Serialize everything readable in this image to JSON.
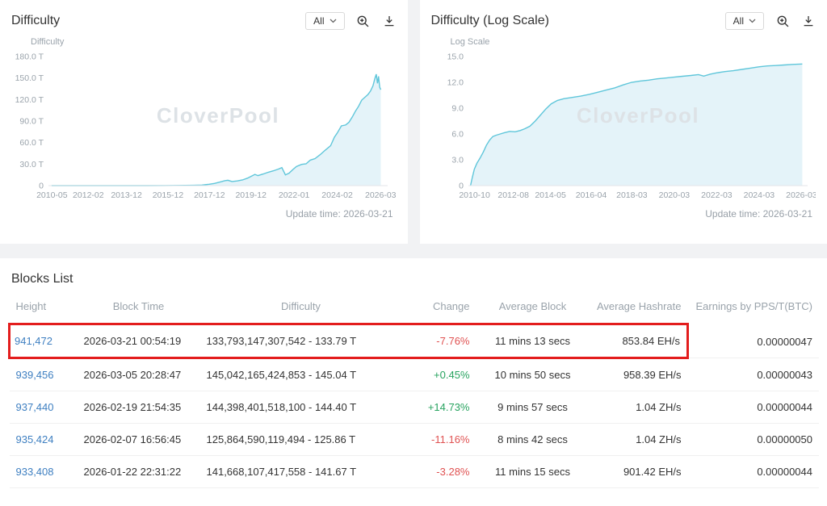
{
  "charts": [
    {
      "title": "Difficulty",
      "range": "All",
      "axis_label": "Difficulty",
      "update_time": "Update time: 2026-03-21"
    },
    {
      "title": "Difficulty (Log Scale)",
      "range": "All",
      "axis_label": "Log Scale",
      "update_time": "Update time: 2026-03-21"
    }
  ],
  "chart_data": [
    {
      "type": "area",
      "title": "Difficulty",
      "watermark": "CloverPool",
      "stroke": "#5fc6da",
      "fill": "#e4f3f9",
      "xlim": [
        2010.2,
        2026.55
      ],
      "ylim": [
        0,
        180
      ],
      "yticks": [
        {
          "v": 0,
          "label": "0"
        },
        {
          "v": 30,
          "label": "30.0 T"
        },
        {
          "v": 60,
          "label": "60.0 T"
        },
        {
          "v": 90,
          "label": "90.0 T"
        },
        {
          "v": 120,
          "label": "120.0 T"
        },
        {
          "v": 150,
          "label": "150.0 T"
        },
        {
          "v": 180,
          "label": "180.0 T"
        }
      ],
      "xticks": [
        {
          "v": 2010.37,
          "label": "2010-05"
        },
        {
          "v": 2012.12,
          "label": "2012-02"
        },
        {
          "v": 2013.96,
          "label": "2013-12"
        },
        {
          "v": 2015.96,
          "label": "2015-12"
        },
        {
          "v": 2017.96,
          "label": "2017-12"
        },
        {
          "v": 2019.96,
          "label": "2019-12"
        },
        {
          "v": 2022.04,
          "label": "2022-01"
        },
        {
          "v": 2024.12,
          "label": "2024-02"
        },
        {
          "v": 2026.21,
          "label": "2026-03"
        }
      ],
      "points": [
        [
          2010.35,
          0
        ],
        [
          2012.0,
          0
        ],
        [
          2013.0,
          0
        ],
        [
          2014.0,
          0.01
        ],
        [
          2015.0,
          0.05
        ],
        [
          2015.8,
          0.1
        ],
        [
          2016.3,
          0.2
        ],
        [
          2016.8,
          0.3
        ],
        [
          2017.2,
          0.5
        ],
        [
          2017.6,
          0.8
        ],
        [
          2017.95,
          1.9
        ],
        [
          2018.2,
          3.0
        ],
        [
          2018.45,
          4.8
        ],
        [
          2018.7,
          6.9
        ],
        [
          2018.85,
          7.4
        ],
        [
          2019.05,
          5.7
        ],
        [
          2019.3,
          6.5
        ],
        [
          2019.55,
          7.9
        ],
        [
          2019.8,
          10.5
        ],
        [
          2019.98,
          13.1
        ],
        [
          2020.15,
          15.6
        ],
        [
          2020.3,
          13.9
        ],
        [
          2020.55,
          16.2
        ],
        [
          2020.8,
          18.7
        ],
        [
          2021.05,
          20.7
        ],
        [
          2021.3,
          23.2
        ],
        [
          2021.45,
          25.1
        ],
        [
          2021.62,
          15.0
        ],
        [
          2021.8,
          17.4
        ],
        [
          2021.98,
          22.4
        ],
        [
          2022.15,
          26.7
        ],
        [
          2022.4,
          29.6
        ],
        [
          2022.62,
          30.4
        ],
        [
          2022.82,
          35.5
        ],
        [
          2023.05,
          37.7
        ],
        [
          2023.3,
          43.2
        ],
        [
          2023.55,
          49.6
        ],
        [
          2023.8,
          55.7
        ],
        [
          2023.98,
          67.4
        ],
        [
          2024.12,
          73.3
        ],
        [
          2024.32,
          83.2
        ],
        [
          2024.52,
          84.5
        ],
        [
          2024.68,
          88.2
        ],
        [
          2024.85,
          95.8
        ],
        [
          2025.0,
          104.0
        ],
        [
          2025.15,
          110.6
        ],
        [
          2025.3,
          119.2
        ],
        [
          2025.45,
          123.1
        ],
        [
          2025.6,
          127.0
        ],
        [
          2025.72,
          131.7
        ],
        [
          2025.84,
          139.1
        ],
        [
          2025.94,
          149.8
        ],
        [
          2026.0,
          155.2
        ],
        [
          2026.06,
          142.5
        ],
        [
          2026.11,
          152.3
        ],
        [
          2026.17,
          137.0
        ],
        [
          2026.22,
          133.8
        ]
      ]
    },
    {
      "type": "area",
      "title": "Difficulty (Log Scale)",
      "watermark": "CloverPool",
      "stroke": "#5fc6da",
      "fill": "#e4f3f9",
      "xlim": [
        2010.5,
        2026.5
      ],
      "ylim": [
        0,
        15
      ],
      "yticks": [
        {
          "v": 0,
          "label": "0"
        },
        {
          "v": 3,
          "label": "3.0"
        },
        {
          "v": 6,
          "label": "6.0"
        },
        {
          "v": 9,
          "label": "9.0"
        },
        {
          "v": 12,
          "label": "12.0"
        },
        {
          "v": 15,
          "label": "15.0"
        }
      ],
      "xticks": [
        {
          "v": 2010.79,
          "label": "2010-10"
        },
        {
          "v": 2012.62,
          "label": "2012-08"
        },
        {
          "v": 2014.37,
          "label": "2014-05"
        },
        {
          "v": 2016.29,
          "label": "2016-04"
        },
        {
          "v": 2018.21,
          "label": "2018-03"
        },
        {
          "v": 2020.21,
          "label": "2020-03"
        },
        {
          "v": 2022.21,
          "label": "2022-03"
        },
        {
          "v": 2024.21,
          "label": "2024-03"
        },
        {
          "v": 2026.21,
          "label": "2026-03"
        }
      ],
      "points": [
        [
          2010.6,
          0
        ],
        [
          2010.68,
          0.9
        ],
        [
          2010.78,
          1.9
        ],
        [
          2010.9,
          2.6
        ],
        [
          2011.05,
          3.2
        ],
        [
          2011.2,
          3.9
        ],
        [
          2011.35,
          4.7
        ],
        [
          2011.5,
          5.3
        ],
        [
          2011.65,
          5.7
        ],
        [
          2011.8,
          5.85
        ],
        [
          2012.0,
          6.0
        ],
        [
          2012.2,
          6.15
        ],
        [
          2012.45,
          6.3
        ],
        [
          2012.7,
          6.25
        ],
        [
          2012.95,
          6.4
        ],
        [
          2013.15,
          6.6
        ],
        [
          2013.4,
          6.9
        ],
        [
          2013.65,
          7.5
        ],
        [
          2013.9,
          8.2
        ],
        [
          2014.15,
          8.9
        ],
        [
          2014.4,
          9.5
        ],
        [
          2014.7,
          9.9
        ],
        [
          2015.0,
          10.1
        ],
        [
          2015.4,
          10.25
        ],
        [
          2015.8,
          10.4
        ],
        [
          2016.2,
          10.6
        ],
        [
          2016.6,
          10.85
        ],
        [
          2017.0,
          11.1
        ],
        [
          2017.4,
          11.35
        ],
        [
          2017.8,
          11.7
        ],
        [
          2018.2,
          12.0
        ],
        [
          2018.6,
          12.15
        ],
        [
          2019.0,
          12.25
        ],
        [
          2019.4,
          12.4
        ],
        [
          2019.8,
          12.5
        ],
        [
          2020.2,
          12.6
        ],
        [
          2020.6,
          12.7
        ],
        [
          2021.0,
          12.8
        ],
        [
          2021.35,
          12.9
        ],
        [
          2021.6,
          12.72
        ],
        [
          2021.9,
          12.95
        ],
        [
          2022.2,
          13.1
        ],
        [
          2022.6,
          13.25
        ],
        [
          2023.0,
          13.35
        ],
        [
          2023.4,
          13.5
        ],
        [
          2023.8,
          13.65
        ],
        [
          2024.2,
          13.8
        ],
        [
          2024.6,
          13.9
        ],
        [
          2025.0,
          13.95
        ],
        [
          2025.4,
          14.02
        ],
        [
          2025.8,
          14.08
        ],
        [
          2026.25,
          14.13
        ]
      ]
    }
  ],
  "blocks": {
    "title": "Blocks List",
    "columns": [
      "Height",
      "Block Time",
      "Difficulty",
      "Change",
      "Average Block",
      "Average Hashrate",
      "Earnings by PPS/T(BTC)"
    ],
    "rows": [
      {
        "height": "941,472",
        "time": "2026-03-21 00:54:19",
        "difficulty": "133,793,147,307,542 - 133.79 T",
        "change": "-7.76%",
        "avg_block": "11 mins 13 secs",
        "hashrate": "853.84 EH/s",
        "earnings": "0.00000047",
        "highlight": true
      },
      {
        "height": "939,456",
        "time": "2026-03-05 20:28:47",
        "difficulty": "145,042,165,424,853 - 145.04 T",
        "change": "+0.45%",
        "avg_block": "10 mins 50 secs",
        "hashrate": "958.39 EH/s",
        "earnings": "0.00000043",
        "highlight": false
      },
      {
        "height": "937,440",
        "time": "2026-02-19 21:54:35",
        "difficulty": "144,398,401,518,100 - 144.40 T",
        "change": "+14.73%",
        "avg_block": "9 mins 57 secs",
        "hashrate": "1.04 ZH/s",
        "earnings": "0.00000044",
        "highlight": false
      },
      {
        "height": "935,424",
        "time": "2026-02-07 16:56:45",
        "difficulty": "125,864,590,119,494 - 125.86 T",
        "change": "-11.16%",
        "avg_block": "8 mins 42 secs",
        "hashrate": "1.04 ZH/s",
        "earnings": "0.00000050",
        "highlight": false
      },
      {
        "height": "933,408",
        "time": "2026-01-22 22:31:22",
        "difficulty": "141,668,107,417,558 - 141.67 T",
        "change": "-3.28%",
        "avg_block": "11 mins 15 secs",
        "hashrate": "901.42 EH/s",
        "earnings": "0.00000044",
        "highlight": false
      }
    ]
  }
}
